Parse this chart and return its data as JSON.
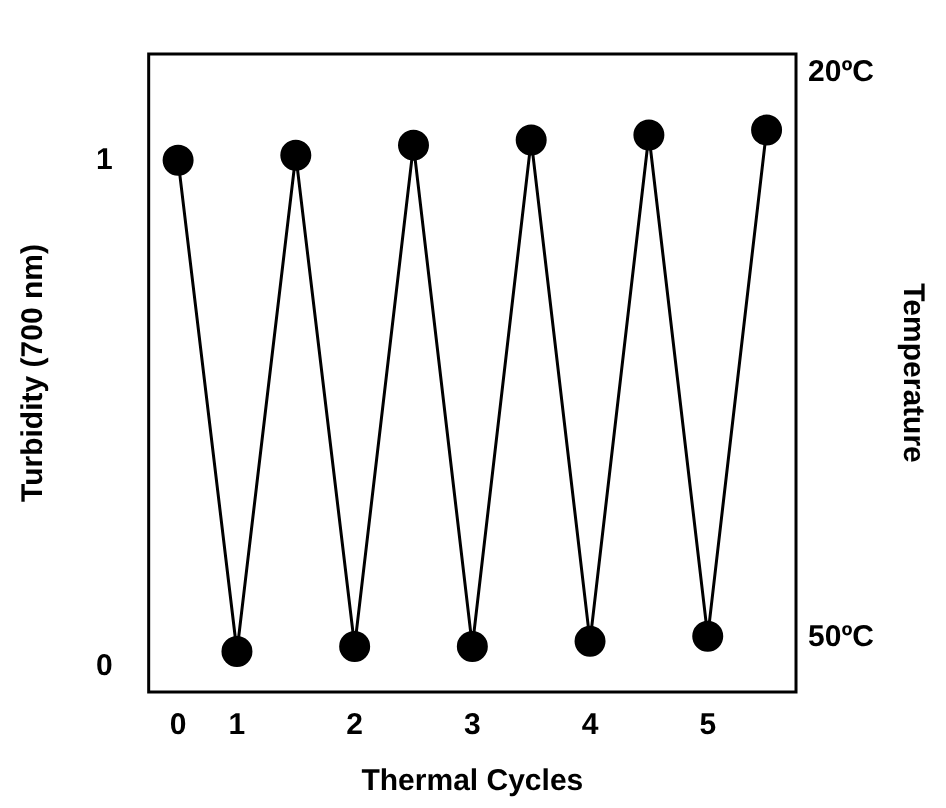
{
  "chart_data": {
    "type": "line",
    "xlabel": "Thermal Cycles",
    "ylabel": "Turbidity (700 nm)",
    "y2label": "Temperature",
    "categories": [
      "0",
      "1",
      null,
      "2",
      null,
      "3",
      null,
      "4",
      null,
      "5",
      null
    ],
    "series": [
      {
        "color": "#000000",
        "values": [
          1.0,
          0.03,
          1.01,
          0.04,
          1.03,
          0.04,
          1.04,
          0.05,
          1.05,
          0.06,
          1.06
        ]
      }
    ],
    "ylim": [
      -0.05,
      1.21
    ],
    "yticks": [
      0,
      1
    ],
    "y2lim": [
      52.9,
      19.0
    ],
    "y2ticks": [
      {
        "value": 20,
        "label": "20ºC"
      },
      {
        "value": 50,
        "label": "50ºC"
      }
    ],
    "grid": false,
    "legend": false,
    "marker": "circle",
    "line_style": "solid"
  }
}
